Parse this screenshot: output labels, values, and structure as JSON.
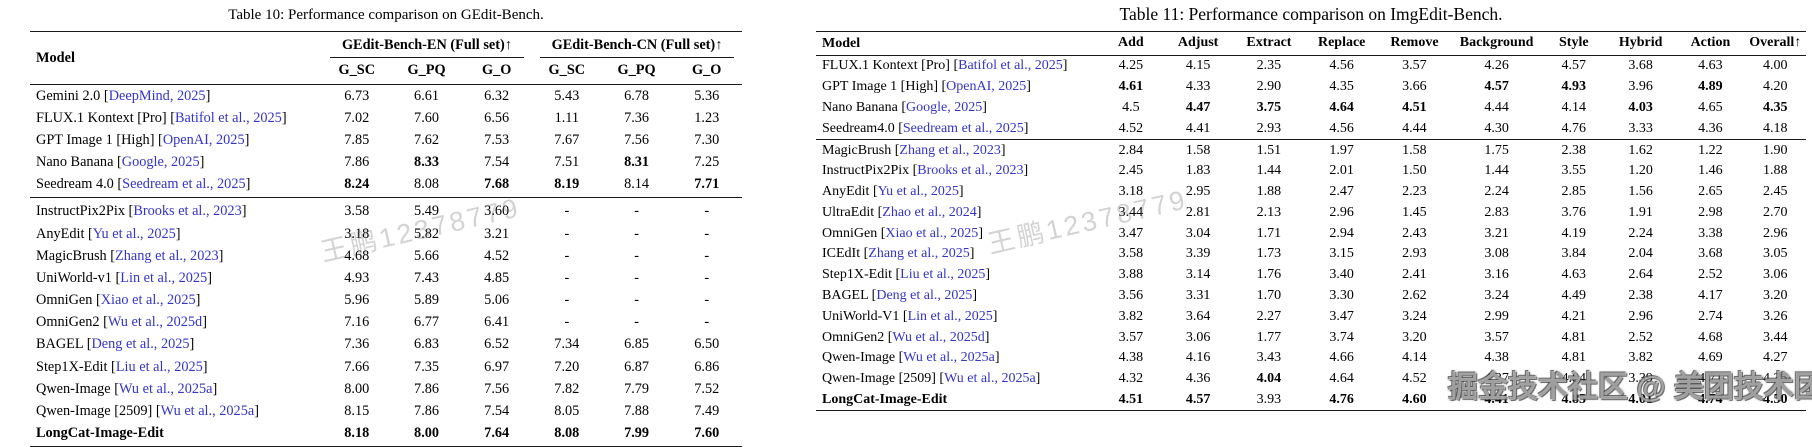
{
  "colors": {
    "citation_blue": "#3434cd",
    "rule": "#1a1a1a"
  },
  "watermarks": {
    "diagonal_text": "王鹏12378779",
    "badge_text": "掘金技术社区 @ 美团技术团队"
  },
  "table10": {
    "caption": "Table 10: Performance comparison on GEdit-Bench.",
    "header": {
      "model": "Model",
      "groups": [
        {
          "label": "GEdit-Bench-EN (Full set)↑",
          "cols": [
            "G_SC",
            "G_PQ",
            "G_O"
          ]
        },
        {
          "label": "GEdit-Bench-CN (Full set)↑",
          "cols": [
            "G_SC",
            "G_PQ",
            "G_O"
          ]
        }
      ]
    },
    "row_groups": [
      {
        "rows": [
          {
            "model": "Gemini 2.0",
            "cite": "DeepMind, 2025",
            "values": [
              "6.73",
              "6.61",
              "6.32",
              "5.43",
              "6.78",
              "5.36"
            ],
            "bold": []
          },
          {
            "model": "FLUX.1 Kontext [Pro]",
            "cite": "Batifol et al., 2025",
            "values": [
              "7.02",
              "7.60",
              "6.56",
              "1.11",
              "7.36",
              "1.23"
            ],
            "bold": []
          },
          {
            "model": "GPT Image 1 [High]",
            "cite": "OpenAI, 2025",
            "values": [
              "7.85",
              "7.62",
              "7.53",
              "7.67",
              "7.56",
              "7.30"
            ],
            "bold": []
          },
          {
            "model": "Nano Banana",
            "cite": "Google, 2025",
            "values": [
              "7.86",
              "8.33",
              "7.54",
              "7.51",
              "8.31",
              "7.25"
            ],
            "bold": [
              1,
              4
            ]
          },
          {
            "model": "Seedream 4.0",
            "cite": "Seedream et al., 2025",
            "values": [
              "8.24",
              "8.08",
              "7.68",
              "8.19",
              "8.14",
              "7.71"
            ],
            "bold": [
              0,
              2,
              3,
              5
            ]
          }
        ]
      },
      {
        "rows": [
          {
            "model": "InstructPix2Pix",
            "cite": "Brooks et al., 2023",
            "values": [
              "3.58",
              "5.49",
              "3.60",
              "-",
              "-",
              "-"
            ],
            "bold": []
          },
          {
            "model": "AnyEdit",
            "cite": "Yu et al., 2025",
            "values": [
              "3.18",
              "5.82",
              "3.21",
              "-",
              "-",
              "-"
            ],
            "bold": []
          },
          {
            "model": "MagicBrush",
            "cite": "Zhang et al., 2023",
            "values": [
              "4.68",
              "5.66",
              "4.52",
              "-",
              "-",
              "-"
            ],
            "bold": []
          },
          {
            "model": "UniWorld-v1",
            "cite": "Lin et al., 2025",
            "values": [
              "4.93",
              "7.43",
              "4.85",
              "-",
              "-",
              "-"
            ],
            "bold": []
          },
          {
            "model": "OmniGen",
            "cite": "Xiao et al., 2025",
            "values": [
              "5.96",
              "5.89",
              "5.06",
              "-",
              "-",
              "-"
            ],
            "bold": []
          },
          {
            "model": "OmniGen2",
            "cite": "Wu et al., 2025d",
            "values": [
              "7.16",
              "6.77",
              "6.41",
              "-",
              "-",
              "-"
            ],
            "bold": []
          },
          {
            "model": "BAGEL",
            "cite": "Deng et al., 2025",
            "values": [
              "7.36",
              "6.83",
              "6.52",
              "7.34",
              "6.85",
              "6.50"
            ],
            "bold": []
          },
          {
            "model": "Step1X-Edit",
            "cite": "Liu et al., 2025",
            "values": [
              "7.66",
              "7.35",
              "6.97",
              "7.20",
              "6.87",
              "6.86"
            ],
            "bold": []
          },
          {
            "model": "Qwen-Image",
            "cite": "Wu et al., 2025a",
            "values": [
              "8.00",
              "7.86",
              "7.56",
              "7.82",
              "7.79",
              "7.52"
            ],
            "bold": []
          },
          {
            "model": "Qwen-Image [2509]",
            "cite": "Wu et al., 2025a",
            "values": [
              "8.15",
              "7.86",
              "7.54",
              "8.05",
              "7.88",
              "7.49"
            ],
            "bold": []
          },
          {
            "model": "LongCat-Image-Edit",
            "cite": null,
            "highlight": true,
            "values": [
              "8.18",
              "8.00",
              "7.64",
              "8.08",
              "7.99",
              "7.60"
            ],
            "bold": [
              0,
              1,
              2,
              3,
              4,
              5
            ]
          }
        ]
      }
    ]
  },
  "table11": {
    "caption": "Table 11: Performance comparison on ImgEdit-Bench.",
    "header": {
      "model": "Model",
      "cols": [
        "Add",
        "Adjust",
        "Extract",
        "Replace",
        "Remove",
        "Background",
        "Style",
        "Hybrid",
        "Action",
        "Overall↑"
      ]
    },
    "row_groups": [
      {
        "rows": [
          {
            "model": "FLUX.1 Kontext [Pro]",
            "cite": "Batifol et al., 2025",
            "values": [
              "4.25",
              "4.15",
              "2.35",
              "4.56",
              "3.57",
              "4.26",
              "4.57",
              "3.68",
              "4.63",
              "4.00"
            ],
            "bold": []
          },
          {
            "model": "GPT Image 1 [High]",
            "cite": "OpenAI, 2025",
            "values": [
              "4.61",
              "4.33",
              "2.90",
              "4.35",
              "3.66",
              "4.57",
              "4.93",
              "3.96",
              "4.89",
              "4.20"
            ],
            "bold": [
              0,
              5,
              6,
              8
            ]
          },
          {
            "model": "Nano Banana",
            "cite": "Google, 2025",
            "values": [
              "4.5",
              "4.47",
              "3.75",
              "4.64",
              "4.51",
              "4.44",
              "4.14",
              "4.03",
              "4.65",
              "4.35"
            ],
            "bold": [
              1,
              2,
              3,
              4,
              7,
              9
            ]
          },
          {
            "model": "Seedream4.0",
            "cite": "Seedream et al., 2025",
            "values": [
              "4.52",
              "4.41",
              "2.93",
              "4.56",
              "4.44",
              "4.30",
              "4.76",
              "3.33",
              "4.36",
              "4.18"
            ],
            "bold": []
          }
        ]
      },
      {
        "rows": [
          {
            "model": "MagicBrush",
            "cite": "Zhang et al., 2023",
            "values": [
              "2.84",
              "1.58",
              "1.51",
              "1.97",
              "1.58",
              "1.75",
              "2.38",
              "1.62",
              "1.22",
              "1.90"
            ],
            "bold": []
          },
          {
            "model": "InstructPix2Pix",
            "cite": "Brooks et al., 2023",
            "values": [
              "2.45",
              "1.83",
              "1.44",
              "2.01",
              "1.50",
              "1.44",
              "3.55",
              "1.20",
              "1.46",
              "1.88"
            ],
            "bold": []
          },
          {
            "model": "AnyEdit",
            "cite": "Yu et al., 2025",
            "values": [
              "3.18",
              "2.95",
              "1.88",
              "2.47",
              "2.23",
              "2.24",
              "2.85",
              "1.56",
              "2.65",
              "2.45"
            ],
            "bold": []
          },
          {
            "model": "UltraEdit",
            "cite": "Zhao et al., 2024",
            "values": [
              "3.44",
              "2.81",
              "2.13",
              "2.96",
              "1.45",
              "2.83",
              "3.76",
              "1.91",
              "2.98",
              "2.70"
            ],
            "bold": []
          },
          {
            "model": "OmniGen",
            "cite": "Xiao et al., 2025",
            "values": [
              "3.47",
              "3.04",
              "1.71",
              "2.94",
              "2.43",
              "3.21",
              "4.19",
              "2.24",
              "3.38",
              "2.96"
            ],
            "bold": []
          },
          {
            "model": "ICEdIt",
            "cite": "Zhang et al., 2025",
            "values": [
              "3.58",
              "3.39",
              "1.73",
              "3.15",
              "2.93",
              "3.08",
              "3.84",
              "2.04",
              "3.68",
              "3.05"
            ],
            "bold": []
          },
          {
            "model": "Step1X-Edit",
            "cite": "Liu et al., 2025",
            "values": [
              "3.88",
              "3.14",
              "1.76",
              "3.40",
              "2.41",
              "3.16",
              "4.63",
              "2.64",
              "2.52",
              "3.06"
            ],
            "bold": []
          },
          {
            "model": "BAGEL",
            "cite": "Deng et al., 2025",
            "values": [
              "3.56",
              "3.31",
              "1.70",
              "3.30",
              "2.62",
              "3.24",
              "4.49",
              "2.38",
              "4.17",
              "3.20"
            ],
            "bold": []
          },
          {
            "model": "UniWorld-V1",
            "cite": "Lin et al., 2025",
            "values": [
              "3.82",
              "3.64",
              "2.27",
              "3.47",
              "3.24",
              "2.99",
              "4.21",
              "2.96",
              "2.74",
              "3.26"
            ],
            "bold": []
          },
          {
            "model": "OmniGen2",
            "cite": "Wu et al., 2025d",
            "values": [
              "3.57",
              "3.06",
              "1.77",
              "3.74",
              "3.20",
              "3.57",
              "4.81",
              "2.52",
              "4.68",
              "3.44"
            ],
            "bold": []
          },
          {
            "model": "Qwen-Image",
            "cite": "Wu et al., 2025a",
            "values": [
              "4.38",
              "4.16",
              "3.43",
              "4.66",
              "4.14",
              "4.38",
              "4.81",
              "3.82",
              "4.69",
              "4.27"
            ],
            "bold": []
          },
          {
            "model": "Qwen-Image [2509]",
            "cite": "Wu et al., 2025a",
            "values": [
              "4.32",
              "4.36",
              "4.04",
              "4.64",
              "4.52",
              "4.37",
              "4.84",
              "3.39",
              "4.71",
              "4.35"
            ],
            "bold": [
              2
            ]
          },
          {
            "model": "LongCat-Image-Edit",
            "cite": null,
            "highlight": true,
            "values": [
              "4.51",
              "4.57",
              "3.93",
              "4.76",
              "4.60",
              "4.41",
              "4.85",
              "4.01",
              "4.74",
              "4.50"
            ],
            "bold": [
              0,
              1,
              3,
              4,
              5,
              6,
              7,
              8,
              9
            ]
          }
        ]
      }
    ]
  }
}
